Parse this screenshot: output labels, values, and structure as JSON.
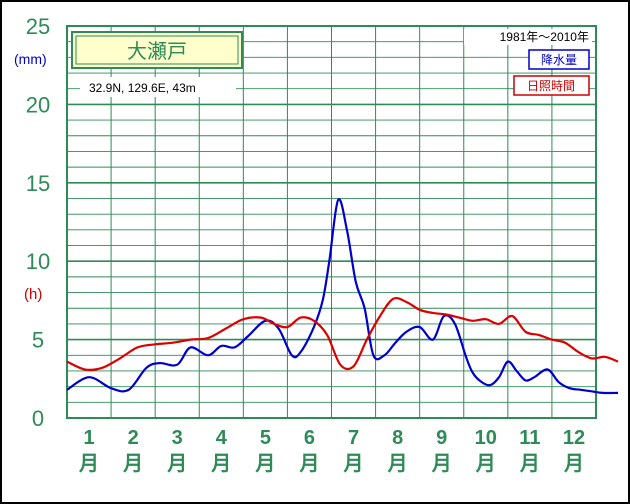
{
  "colors": {
    "grid": "#2e8b57",
    "precip": "#0000cc",
    "sunshine": "#dd0000",
    "title_box_bg": "#ffffcc"
  },
  "chart_data": {
    "type": "line",
    "title": "大瀬戸",
    "location": "32.9N,  129.6E,  43m",
    "period": "1981年〜2010年",
    "y_unit_left": "(mm)",
    "y_unit_right": "(h)",
    "ylim": [
      0,
      25
    ],
    "yticks": [
      "0",
      "5",
      "10",
      "15",
      "20",
      "25"
    ],
    "months": [
      "1",
      "2",
      "3",
      "4",
      "5",
      "6",
      "7",
      "8",
      "9",
      "10",
      "11",
      "12"
    ],
    "month_suffix": "月",
    "legend": [
      "降水量",
      "日照時間"
    ],
    "series": [
      {
        "name": "降水量",
        "x": [
          0,
          0.5,
          1,
          1.4,
          1.8,
          2.1,
          2.5,
          2.8,
          3.2,
          3.5,
          3.8,
          4.1,
          4.5,
          4.8,
          5.1,
          5.3,
          5.6,
          5.8,
          5.95,
          6.15,
          6.35,
          6.55,
          6.75,
          6.95,
          7.2,
          7.45,
          7.7,
          8.0,
          8.3,
          8.55,
          8.8,
          9.05,
          9.2,
          9.4,
          9.6,
          9.8,
          10.0,
          10.2,
          10.4,
          10.6,
          10.9,
          11.15,
          11.4,
          11.65,
          11.9,
          12.15,
          12.5
        ],
        "values": [
          1.8,
          2.6,
          1.9,
          1.8,
          3.2,
          3.5,
          3.4,
          4.5,
          4.0,
          4.6,
          4.5,
          5.2,
          6.2,
          5.7,
          4.0,
          4.2,
          5.8,
          7.5,
          10.0,
          13.9,
          12.0,
          8.7,
          7.0,
          4.0,
          4.0,
          4.8,
          5.5,
          5.8,
          5.0,
          6.5,
          6.0,
          3.9,
          2.9,
          2.3,
          2.1,
          2.6,
          3.6,
          3.0,
          2.4,
          2.6,
          3.1,
          2.3,
          1.9,
          1.8,
          1.7,
          1.6,
          1.6
        ]
      },
      {
        "name": "日照時間",
        "x": [
          0,
          0.4,
          0.8,
          1.2,
          1.6,
          2.0,
          2.4,
          2.8,
          3.2,
          3.6,
          4.0,
          4.4,
          4.7,
          5.0,
          5.3,
          5.6,
          5.9,
          6.2,
          6.5,
          6.8,
          7.1,
          7.4,
          7.7,
          8.0,
          8.3,
          8.6,
          8.9,
          9.2,
          9.5,
          9.8,
          10.1,
          10.4,
          10.7,
          11.0,
          11.3,
          11.6,
          11.9,
          12.2,
          12.5
        ],
        "values": [
          3.6,
          3.1,
          3.2,
          3.8,
          4.5,
          4.7,
          4.8,
          5.0,
          5.1,
          5.7,
          6.3,
          6.4,
          6.0,
          5.8,
          6.4,
          6.2,
          5.3,
          3.4,
          3.3,
          5.0,
          6.5,
          7.6,
          7.4,
          6.9,
          6.7,
          6.6,
          6.4,
          6.2,
          6.3,
          6.0,
          6.5,
          5.5,
          5.3,
          5.0,
          4.8,
          4.2,
          3.8,
          3.9,
          3.6
        ]
      }
    ]
  }
}
